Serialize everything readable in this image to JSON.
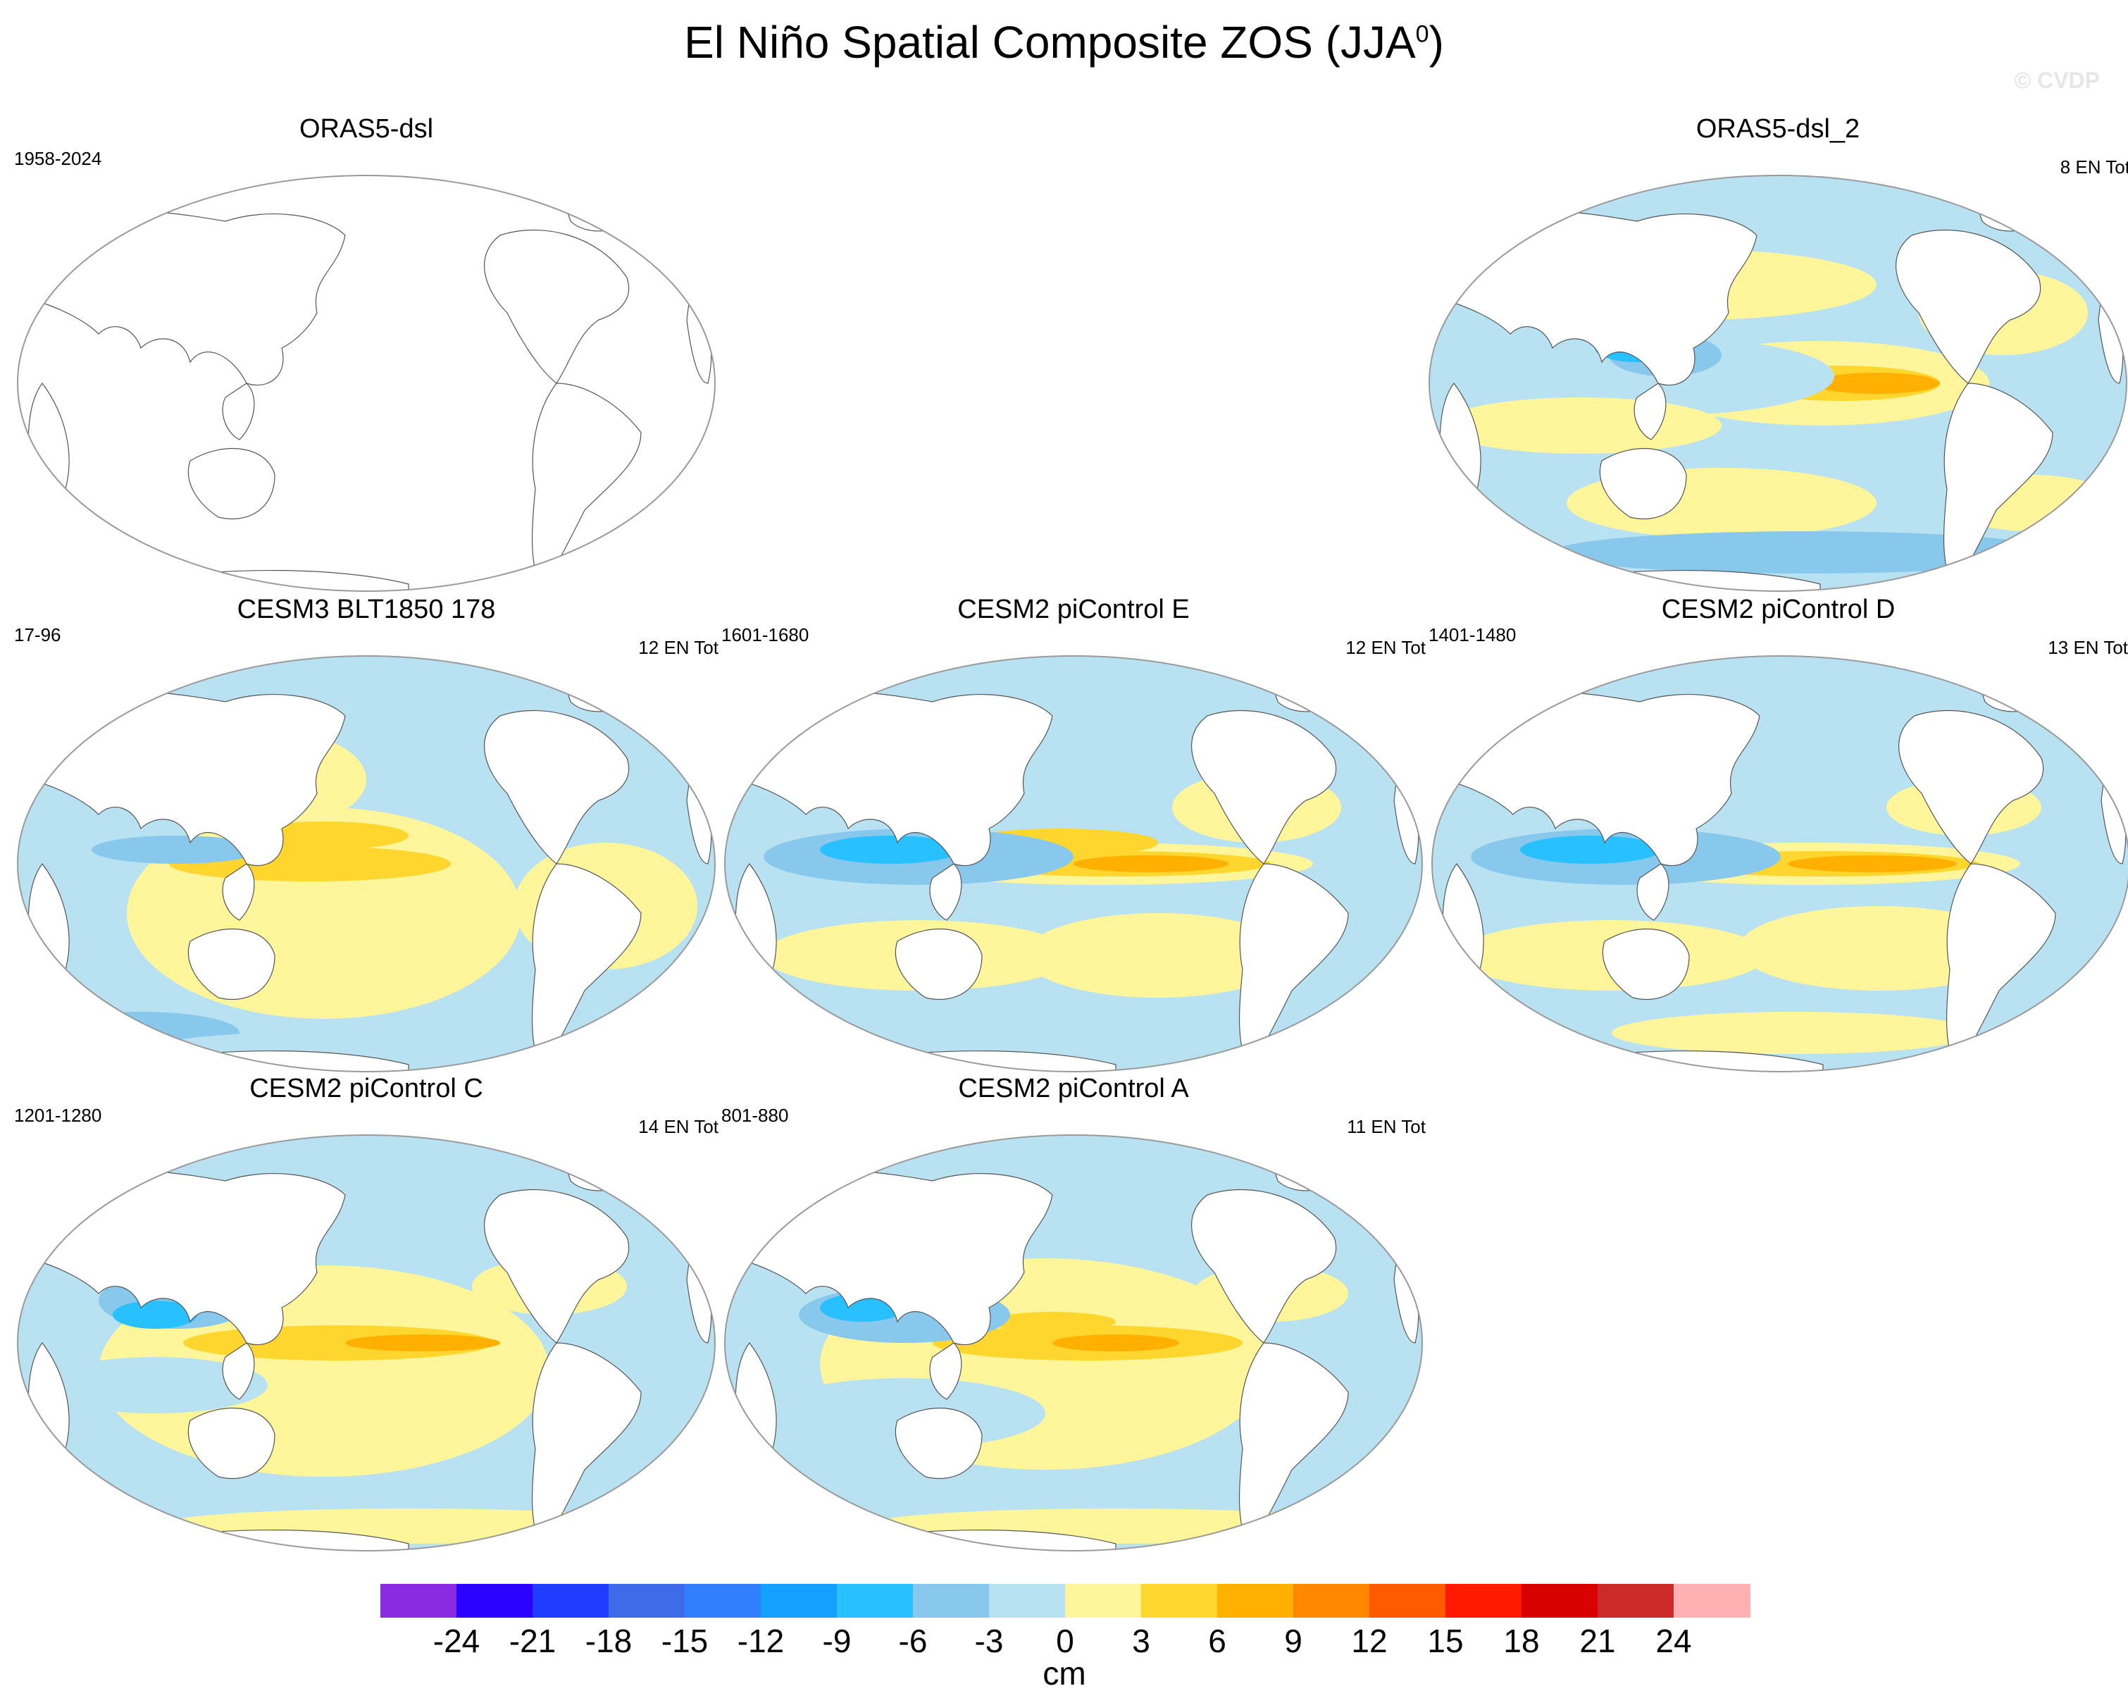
{
  "title": "El Niño Spatial Composite ZOS (JJA",
  "title_sup": "0",
  "title_close": ")",
  "watermark": "© CVDP",
  "units": "cm",
  "chart_data": {
    "type": "heatmap",
    "title": "El Niño Spatial Composite ZOS (JJA0)",
    "variable": "ZOS",
    "season": "JJA0",
    "units": "cm",
    "projection": "Robinson (Pacific-centered)",
    "colorbar": {
      "levels": [
        -24,
        -21,
        -18,
        -15,
        -12,
        -9,
        -6,
        -3,
        0,
        3,
        6,
        9,
        12,
        15,
        18,
        21,
        24
      ],
      "colors": [
        "#8a2be2",
        "#2a00ff",
        "#1f3cff",
        "#3e6be8",
        "#2f7fff",
        "#14a0ff",
        "#28c0ff",
        "#87c8ec",
        "#b8e2f2",
        "#fff59a",
        "#ffd62e",
        "#ffb000",
        "#ff8800",
        "#ff5a00",
        "#ff1a00",
        "#d90000",
        "#cc2a2a",
        "#ffb0b0"
      ]
    },
    "panels": [
      {
        "name": "ORAS5-dsl",
        "period": "1958-2024",
        "count": "",
        "empty": true
      },
      {
        "name": "ORAS5-dsl_2",
        "period": "",
        "count": "8 EN Tot"
      },
      {
        "name": "CESM3 BLT1850 178",
        "period": "17-96",
        "count": "12 EN Tot"
      },
      {
        "name": "CESM2 piControl E",
        "period": "1601-1680",
        "count": "12 EN Tot"
      },
      {
        "name": "CESM2 piControl D",
        "period": "1401-1480",
        "count": "13 EN Tot"
      },
      {
        "name": "CESM2 piControl C",
        "period": "1201-1280",
        "count": "14 EN Tot"
      },
      {
        "name": "CESM2 piControl A",
        "period": "801-880",
        "count": "11 EN Tot"
      }
    ]
  }
}
